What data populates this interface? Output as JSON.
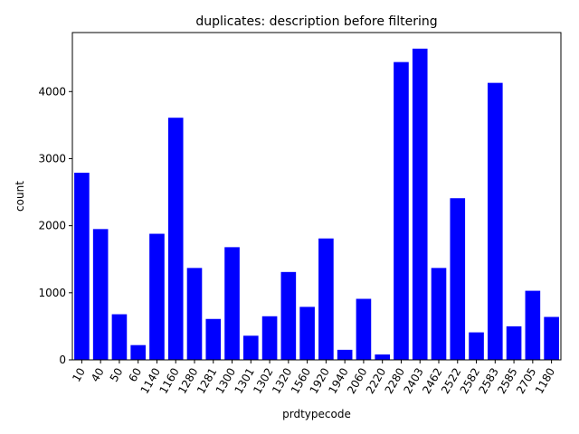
{
  "chart_data": {
    "type": "bar",
    "title": "duplicates: description before filtering",
    "xlabel": "prdtypecode",
    "ylabel": "count",
    "categories": [
      "10",
      "40",
      "50",
      "60",
      "1140",
      "1160",
      "1280",
      "1281",
      "1300",
      "1301",
      "1302",
      "1320",
      "1560",
      "1920",
      "1940",
      "2060",
      "2220",
      "2280",
      "2403",
      "2462",
      "2522",
      "2582",
      "2583",
      "2585",
      "2705",
      "1180"
    ],
    "values": [
      2790,
      1950,
      680,
      220,
      1880,
      3610,
      1370,
      610,
      1680,
      360,
      650,
      1310,
      790,
      1810,
      150,
      910,
      80,
      4440,
      4640,
      1370,
      2410,
      410,
      4130,
      500,
      1030,
      640
    ],
    "yticks": [
      0,
      1000,
      2000,
      3000,
      4000
    ],
    "ylim": [
      0,
      4880
    ],
    "bar_color": "#0000ff",
    "x_tick_rotation": 60,
    "grid": false,
    "legend": "none"
  }
}
